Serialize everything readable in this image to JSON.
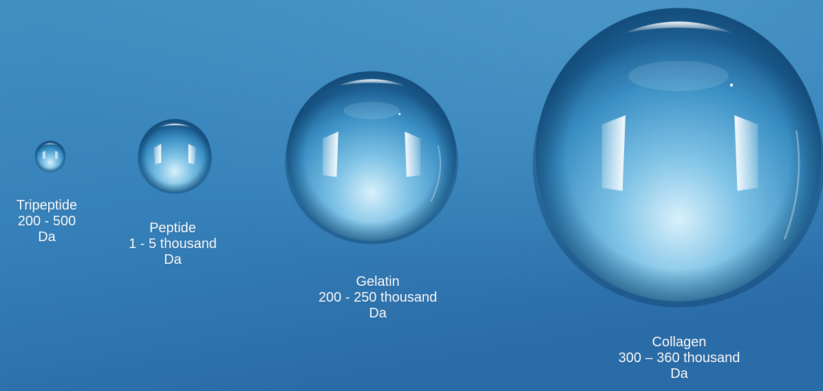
{
  "colors": {
    "background_top": "#3f8fc2",
    "background_bottom": "#2a6fab",
    "label_text": "#ffffff"
  },
  "molecules": [
    {
      "name": "Tripeptide",
      "range": "200 - 500",
      "unit": "Da"
    },
    {
      "name": "Peptide",
      "range": "1 - 5 thousand",
      "unit": "Da"
    },
    {
      "name": "Gelatin",
      "range": "200 - 250 thousand",
      "unit": "Da"
    },
    {
      "name": "Collagen",
      "range": "300 – 360 thousand",
      "unit": "Da"
    }
  ]
}
